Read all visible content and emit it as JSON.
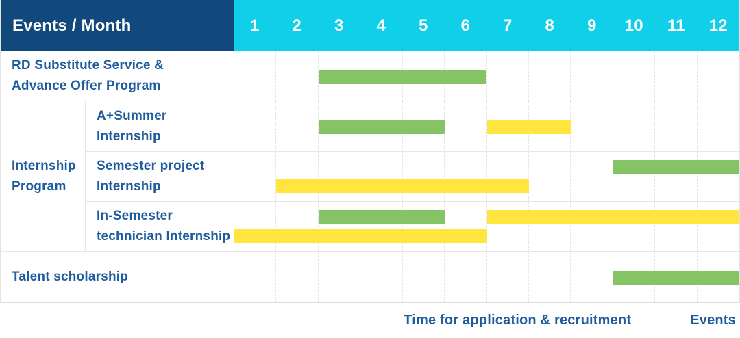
{
  "header": {
    "title": "Events / Month"
  },
  "colors": {
    "header_bg": "#12497d",
    "months_bg": "#10cfe9",
    "label_blue": "#1e5c9d",
    "grid_solid": "#e6e6e6",
    "grid_dash": "#e3e3e3",
    "application_green": "#85c464",
    "events_yellow": "#ffe53e"
  },
  "chart_data": {
    "type": "bar",
    "variant": "gantt-timeline-table",
    "title": "Events / Month",
    "x_axis_label": "Month",
    "x_range": [
      1,
      12
    ],
    "months": [
      "1",
      "2",
      "3",
      "4",
      "5",
      "6",
      "7",
      "8",
      "9",
      "10",
      "11",
      "12"
    ],
    "grid": "dashed-monthly-columns",
    "legend_position": "bottom-right",
    "legend": [
      {
        "kind": "application",
        "label": "Time for application & recruitment",
        "color": "#85c464"
      },
      {
        "kind": "events",
        "label": "Events",
        "color": "#ffe53e"
      }
    ],
    "group_column": {
      "label": "Internship Program",
      "label_lines": [
        "Internship",
        "Program"
      ],
      "spans_rows": [
        1,
        2,
        3
      ]
    },
    "rows": [
      {
        "label": "RD Substitute Service & Advance Offer Program",
        "label_lines": [
          "RD Substitute Service &",
          "Advance Offer Program"
        ],
        "bands": [
          {
            "segments": [
              {
                "kind": "application",
                "start_month": 3,
                "end_month": 6
              }
            ]
          }
        ]
      },
      {
        "label": "A+Summer Internship",
        "label_lines": [
          "A+Summer",
          "Internship"
        ],
        "bands": [
          {
            "segments": [
              {
                "kind": "application",
                "start_month": 3,
                "end_month": 5
              },
              {
                "kind": "events",
                "start_month": 7,
                "end_month": 8
              }
            ]
          }
        ]
      },
      {
        "label": "Semester project Internship",
        "label_lines": [
          "Semester project",
          "Internship"
        ],
        "bands": [
          {
            "segments": [
              {
                "kind": "application",
                "start_month": 10,
                "end_month": 12
              }
            ]
          },
          {
            "segments": [
              {
                "kind": "events",
                "start_month": 2,
                "end_month": 7
              }
            ]
          }
        ]
      },
      {
        "label": "In-Semester technician Internship",
        "label_lines": [
          "In-Semester",
          "technician Internship"
        ],
        "bands": [
          {
            "segments": [
              {
                "kind": "application",
                "start_month": 3,
                "end_month": 5
              },
              {
                "kind": "events",
                "start_month": 7,
                "end_month": 12
              }
            ]
          },
          {
            "segments": [
              {
                "kind": "events",
                "start_month": 1,
                "end_month": 6
              }
            ]
          }
        ]
      },
      {
        "label": "Talent scholarship",
        "label_lines": [
          "Talent scholarship"
        ],
        "bands": [
          {
            "segments": [
              {
                "kind": "application",
                "start_month": 10,
                "end_month": 12
              }
            ]
          }
        ]
      }
    ]
  }
}
